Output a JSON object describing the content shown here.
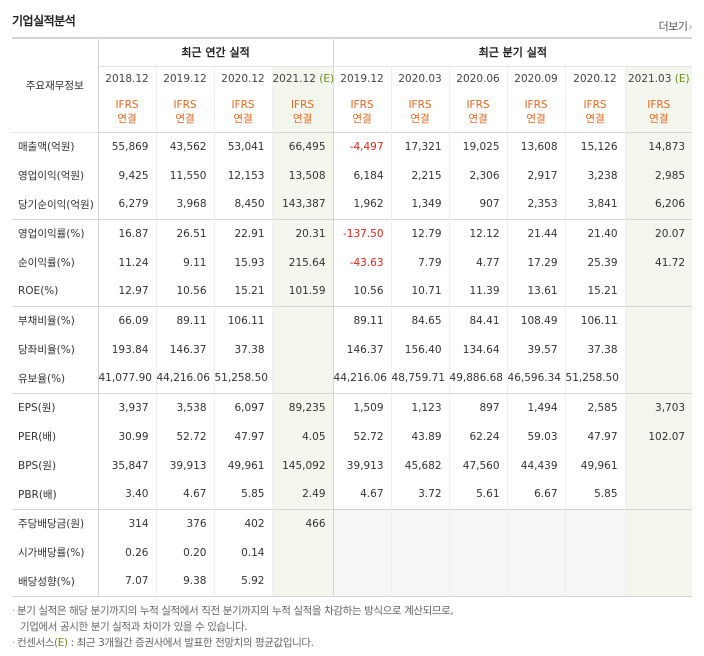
{
  "section_title": "기업실적분석",
  "more_label": "더보기",
  "more_chevron": "›",
  "row_header_label": "주요재무정보",
  "annual_title": "최근 연간 실적",
  "quarter_title": "최근 분기 실적",
  "ifrs_label": "IFRS",
  "ifrs_sub": "연결",
  "annual_years": [
    "2018.12",
    "2019.12",
    "2020.12",
    "2021.12"
  ],
  "quarter_years": [
    "2019.12",
    "2020.03",
    "2020.06",
    "2020.09",
    "2020.12",
    "2021.03"
  ],
  "estimate_mark": "(E)",
  "rows": [
    {
      "label": "매출액(억원)",
      "values": [
        "55,869",
        "43,562",
        "53,041",
        "66,495",
        "-4,497",
        "17,321",
        "19,025",
        "13,608",
        "15,126",
        "14,873"
      ]
    },
    {
      "label": "영업이익(억원)",
      "values": [
        "9,425",
        "11,550",
        "12,153",
        "13,508",
        "6,184",
        "2,215",
        "2,306",
        "2,917",
        "3,238",
        "2,985"
      ]
    },
    {
      "label": "당기순이익(억원)",
      "values": [
        "6,279",
        "3,968",
        "8,450",
        "143,387",
        "1,962",
        "1,349",
        "907",
        "2,353",
        "3,841",
        "6,206"
      ]
    },
    {
      "label": "영업이익률(%)",
      "values": [
        "16.87",
        "26.51",
        "22.91",
        "20.31",
        "-137.50",
        "12.79",
        "12.12",
        "21.44",
        "21.40",
        "20.07"
      ]
    },
    {
      "label": "순이익률(%)",
      "values": [
        "11.24",
        "9.11",
        "15.93",
        "215.64",
        "-43.63",
        "7.79",
        "4.77",
        "17.29",
        "25.39",
        "41.72"
      ]
    },
    {
      "label": "ROE(%)",
      "values": [
        "12.97",
        "10.56",
        "15.21",
        "101.59",
        "10.56",
        "10.71",
        "11.39",
        "13.61",
        "15.21",
        ""
      ]
    },
    {
      "label": "부채비율(%)",
      "values": [
        "66.09",
        "89.11",
        "106.11",
        "",
        "89.11",
        "84.65",
        "84.41",
        "108.49",
        "106.11",
        ""
      ]
    },
    {
      "label": "당좌비율(%)",
      "values": [
        "193.84",
        "146.37",
        "37.38",
        "",
        "146.37",
        "156.40",
        "134.64",
        "39.57",
        "37.38",
        ""
      ]
    },
    {
      "label": "유보율(%)",
      "values": [
        "41,077.90",
        "44,216.06",
        "51,258.50",
        "",
        "44,216.06",
        "48,759.71",
        "49,886.68",
        "46,596.34",
        "51,258.50",
        ""
      ]
    },
    {
      "label": "EPS(원)",
      "values": [
        "3,937",
        "3,538",
        "6,097",
        "89,235",
        "1,509",
        "1,123",
        "897",
        "1,494",
        "2,585",
        "3,703"
      ]
    },
    {
      "label": "PER(배)",
      "values": [
        "30.99",
        "52.72",
        "47.97",
        "4.05",
        "52.72",
        "43.89",
        "62.24",
        "59.03",
        "47.97",
        "102.07"
      ]
    },
    {
      "label": "BPS(원)",
      "values": [
        "35,847",
        "39,913",
        "49,961",
        "145,092",
        "39,913",
        "45,682",
        "47,560",
        "44,439",
        "49,961",
        ""
      ]
    },
    {
      "label": "PBR(배)",
      "values": [
        "3.40",
        "4.67",
        "5.85",
        "2.49",
        "4.67",
        "3.72",
        "5.61",
        "6.67",
        "5.85",
        ""
      ]
    },
    {
      "label": "주당배당금(원)",
      "values": [
        "314",
        "376",
        "402",
        "466",
        "",
        "",
        "",
        "",
        "",
        ""
      ]
    },
    {
      "label": "시가배당률(%)",
      "values": [
        "0.26",
        "0.20",
        "0.14",
        "",
        "",
        "",
        "",
        "",
        "",
        ""
      ]
    },
    {
      "label": "배당성향(%)",
      "values": [
        "7.07",
        "9.38",
        "5.92",
        "",
        "",
        "",
        "",
        "",
        "",
        ""
      ]
    }
  ],
  "notes": {
    "line1": "분기 실적은 해당 분기까지의 누적 실적에서 직전 분기까지의 누적 실적을 차감하는 방식으로 계산되므로,",
    "line2": "기업에서 공시한 분기 실적과 차이가 있을 수 있습니다.",
    "line3_prefix": "컨센서스",
    "line3_mark": "(E)",
    "line3_rest": " : 최근 3개월간 증권사에서 발표한 전망치의 평균값입니다.",
    "bullet": "·"
  },
  "colors": {
    "negative": "#e2231a",
    "ifrs": "#e8661b",
    "estimate_mark": "#6d8f20",
    "estimate_bg": "#f2f6ed",
    "empty_bg": "#f6f6f6"
  }
}
